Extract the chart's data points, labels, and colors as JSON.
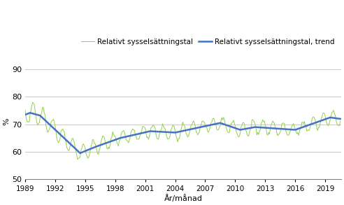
{
  "xlabel": "År/månad",
  "ylabel": "%",
  "legend_labels": [
    "Relativt sysselsättningstal",
    "Relativt sysselsättningstal, trend"
  ],
  "line_color_raw": "#92d050",
  "line_color_trend": "#4472c4",
  "ylim": [
    50,
    92
  ],
  "yticks": [
    50,
    60,
    70,
    80,
    90
  ],
  "xticks_years": [
    1989,
    1992,
    1995,
    1998,
    2001,
    2004,
    2007,
    2010,
    2013,
    2016,
    2019
  ],
  "start_year": 1989,
  "start_month": 1,
  "end_year": 2020,
  "end_month": 7,
  "background_color": "#ffffff",
  "grid_color": "#c0c0c0",
  "raw_linewidth": 0.7,
  "trend_linewidth": 1.8
}
